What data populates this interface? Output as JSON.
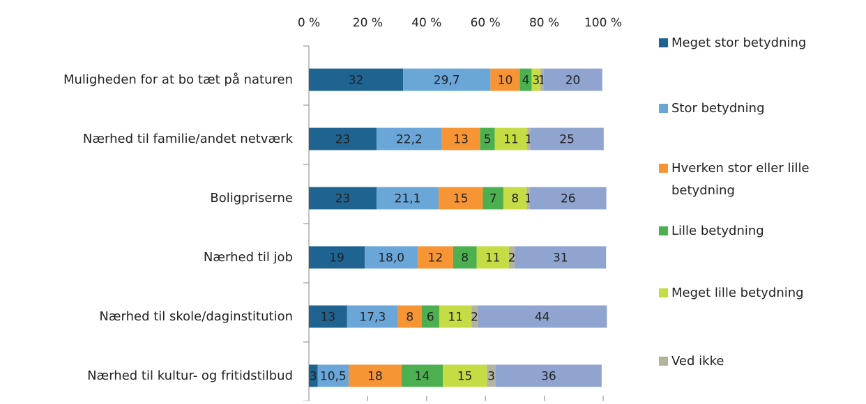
{
  "chart_data": {
    "type": "stacked-bar-horizontal",
    "categories": [
      "Muligheden for at bo tæt på naturen",
      "Nærhed til familie/andet netværk",
      "Boligpriserne",
      "Nærhed til job",
      "Nærhed til skole/daginstitution",
      "Nærhed til kultur- og fritidstilbud"
    ],
    "series": [
      {
        "name": "Meget stor betydning",
        "color": "#1f6391",
        "values": [
          32,
          23,
          23,
          19,
          13,
          3
        ]
      },
      {
        "name": "Stor betydning",
        "color": "#6aa6d8",
        "values": [
          29.7,
          22.2,
          21.1,
          18.0,
          17.3,
          10.5
        ],
        "value_labels": [
          "29,7",
          "22,2",
          "21,1",
          "18,0",
          "17,3",
          "10,5"
        ]
      },
      {
        "name": "Hverken stor eller lille betydning",
        "color": "#f79433",
        "values": [
          10,
          13,
          15,
          12,
          8,
          18
        ]
      },
      {
        "name": "Lille betydning",
        "color": "#4cb050",
        "values": [
          4,
          5,
          7,
          8,
          6,
          14
        ]
      },
      {
        "name": "Meget lille betydning",
        "color": "#c6dc45",
        "values": [
          3,
          11,
          8,
          11,
          11,
          15
        ]
      },
      {
        "name": "Ved ikke",
        "color": "#b3b39f",
        "values": [
          1,
          1,
          1,
          2,
          2,
          3
        ]
      },
      {
        "color": "#8fa5cf",
        "values": [
          20,
          25,
          26,
          31,
          44,
          36
        ]
      }
    ],
    "xlim": [
      0,
      100
    ],
    "xticks": [
      {
        "value": 0,
        "label": "0 %"
      },
      {
        "value": 20,
        "label": "20 %"
      },
      {
        "value": 40,
        "label": "40 %"
      },
      {
        "value": 60,
        "label": "60 %"
      },
      {
        "value": 80,
        "label": "80 %"
      },
      {
        "value": 100,
        "label": "100 %"
      }
    ],
    "legend": "right"
  }
}
